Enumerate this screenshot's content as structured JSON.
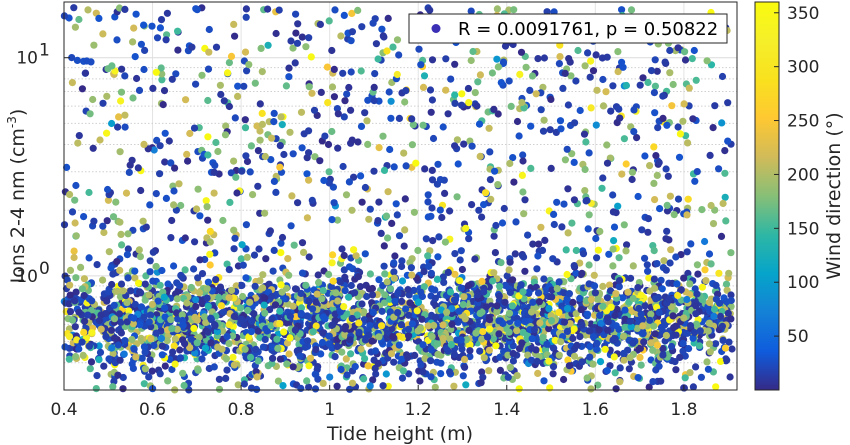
{
  "chart_data": {
    "type": "scatter",
    "xlabel": "Tide height (m)",
    "ylabel": {
      "base": "Ions 2-4 nm (cm",
      "superscript": "-3",
      "close": ")"
    },
    "y_scale": "log",
    "xlim": [
      0.4,
      1.92
    ],
    "ylim": [
      0.3,
      18
    ],
    "x_ticks": [
      0.4,
      0.6,
      0.8,
      1.0,
      1.2,
      1.4,
      1.6,
      1.8
    ],
    "x_tick_labels": [
      "0.4",
      "0.6",
      "0.8",
      "1",
      "1.2",
      "1.4",
      "1.6",
      "1.8"
    ],
    "y_ticks": [
      {
        "value": 1,
        "base": "10",
        "exponent": "0"
      },
      {
        "value": 10,
        "base": "10",
        "exponent": "1"
      }
    ],
    "grid": true,
    "legend": {
      "position": "top-right",
      "text": "R = 0.0091761, p = 0.50822",
      "marker_color": "#3a2fb5"
    },
    "colorbar": {
      "label": "Wind direction (°)",
      "range": [
        0,
        360
      ],
      "ticks": [
        50,
        100,
        150,
        200,
        250,
        300,
        350
      ],
      "colormap": "parula"
    },
    "note": "Several thousand points; x spans ~0.4–1.9 m, dense band at y≈0.4–0.9 cm^-3, sparser to ~17 cm^-3; color = wind direction (mostly ~0–30° dark blue, many ~150–220° yellow)."
  }
}
